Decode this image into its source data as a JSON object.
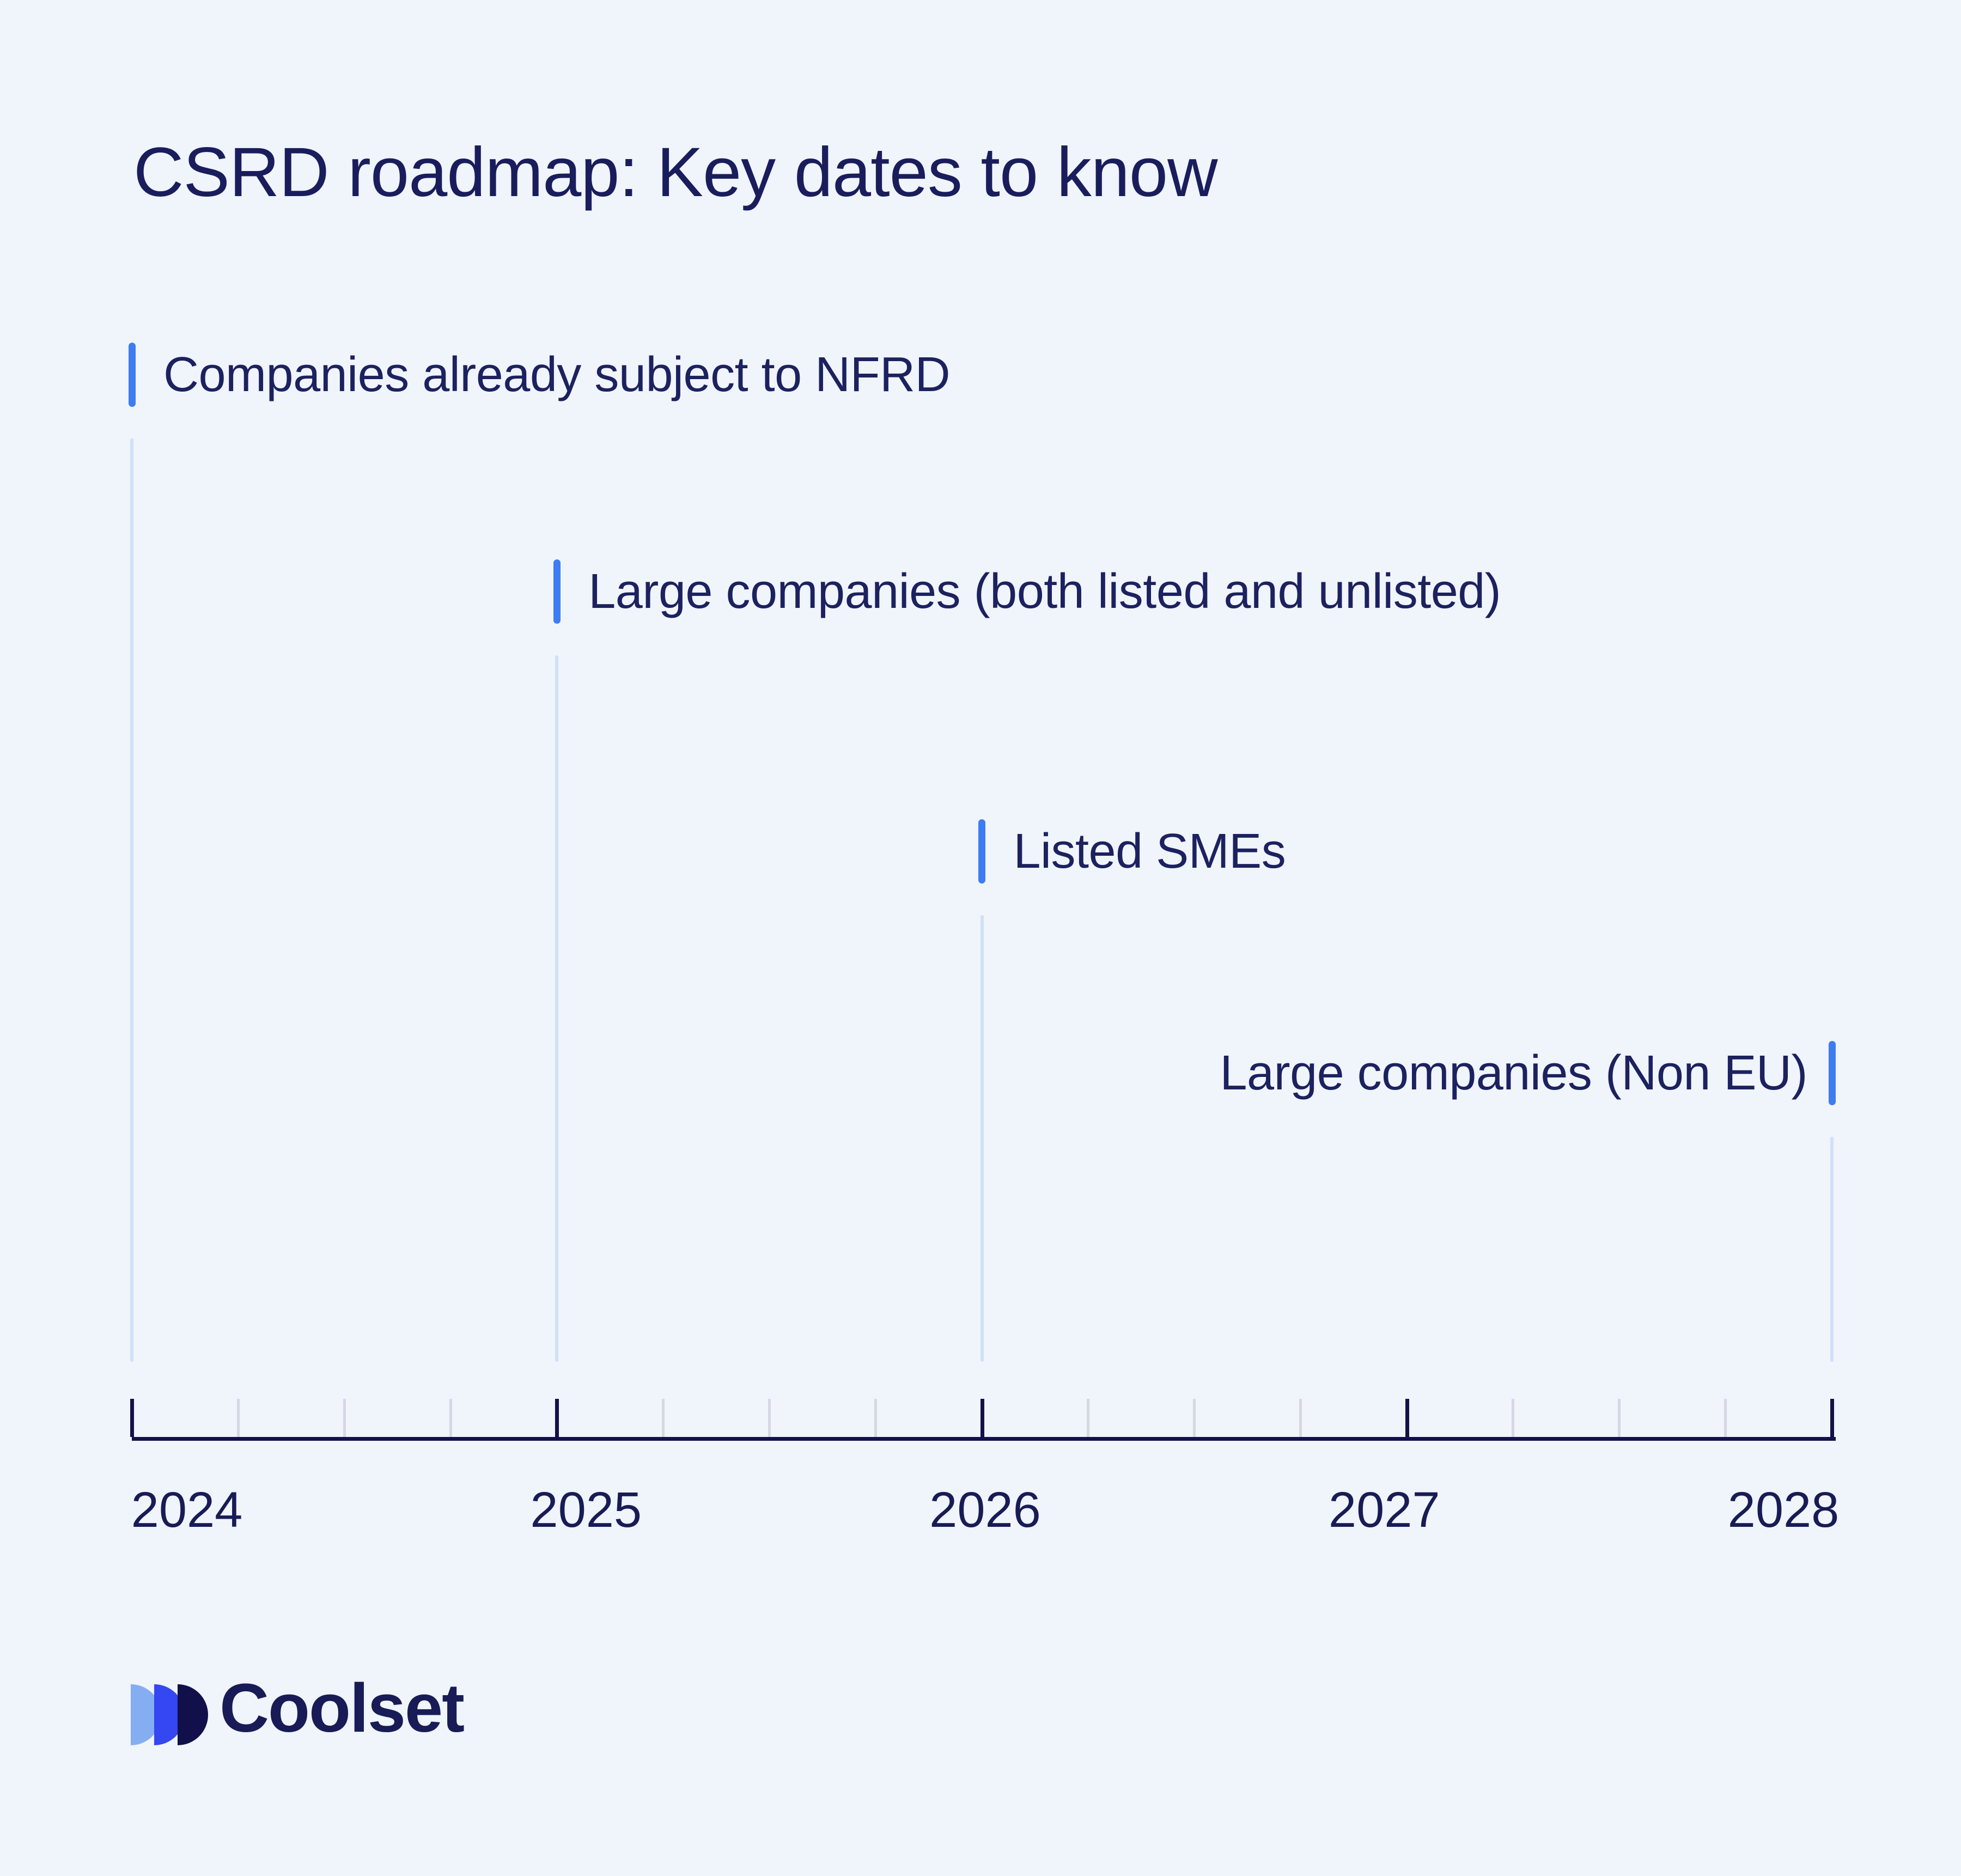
{
  "title": "CSRD roadmap: Key dates to know",
  "chart_data": {
    "type": "timeline",
    "title": "CSRD roadmap: Key dates to know",
    "x_axis": {
      "start_year": 2024,
      "end_year": 2028,
      "tick_labels": [
        "2024",
        "2025",
        "2026",
        "2027",
        "2028"
      ],
      "minor_ticks_per_year": 4
    },
    "milestones": [
      {
        "label": "Companies already subject to NFRD",
        "year": 2024,
        "marker_side": "left-of-text"
      },
      {
        "label": "Large companies (both listed and unlisted)",
        "year": 2025,
        "marker_side": "left-of-text"
      },
      {
        "label": "Listed SMEs",
        "year": 2026,
        "marker_side": "left-of-text"
      },
      {
        "label": "Large companies (Non EU)",
        "year": 2028,
        "marker_side": "right-of-text"
      }
    ],
    "legend": "none",
    "grid": "off"
  },
  "logo": {
    "brand": "Coolset"
  },
  "colors": {
    "background": "#f0f4fb",
    "title_text": "#1a1d5c",
    "label_text": "#1c215f",
    "axis_navy": "#131149",
    "minor_tick": "#d5d7e3",
    "marker_blue": "#3e7cf2",
    "stem_blue": "#cfe1f8",
    "logo_light_blue": "#85adf2",
    "logo_royal_blue": "#3447f0",
    "logo_dark_navy": "#11104a"
  }
}
